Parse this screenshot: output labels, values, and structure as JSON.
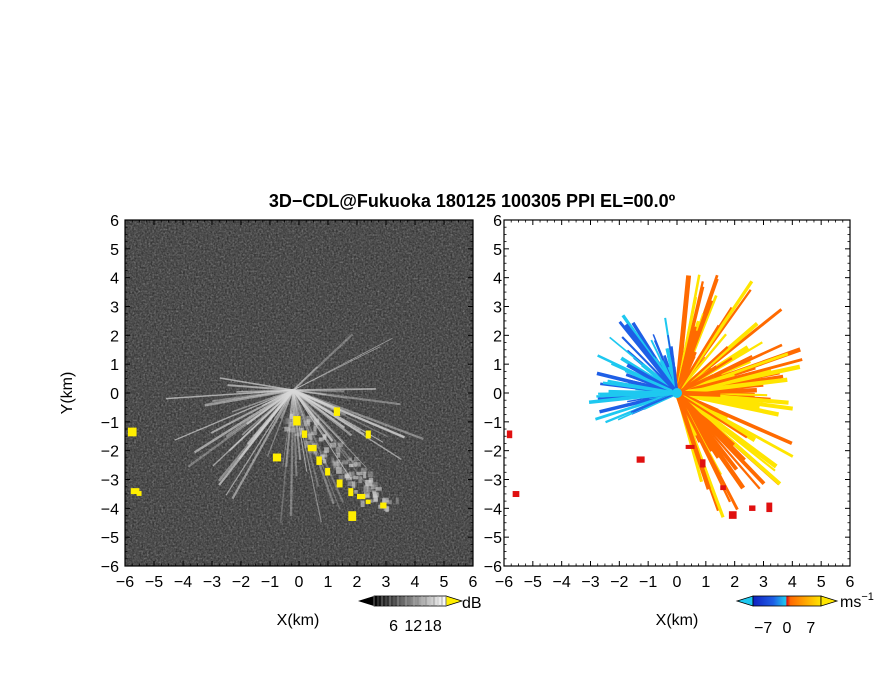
{
  "title": "3D−CDL@Fukuoka 180125 100305 PPI EL=00.0º",
  "chart_data": [
    {
      "type": "heatmap",
      "panel": "left",
      "quantity": "reflectivity / SNR",
      "xlabel": "X(km)",
      "ylabel": "Y(km)",
      "xlim": [
        -6,
        6
      ],
      "ylim": [
        -6,
        6
      ],
      "xticks": [
        "−6",
        "−5",
        "−4",
        "−3",
        "−2",
        "−1",
        "0",
        "1",
        "2",
        "3",
        "4",
        "5",
        "6"
      ],
      "yticks": [
        "6",
        "5",
        "4",
        "3",
        "2",
        "1",
        "0",
        "−1",
        "−2",
        "−3",
        "−4",
        "−5",
        "−6"
      ],
      "colorbar": {
        "unit": "dB",
        "ticks": [
          "6",
          "12",
          "18"
        ],
        "tick_values": [
          6,
          12,
          18
        ],
        "range": [
          0,
          22
        ]
      },
      "background_color": "#2a2a2a",
      "highlight_color": "#ffee00"
    },
    {
      "type": "heatmap",
      "panel": "right",
      "quantity": "Doppler velocity",
      "xlabel": "X(km)",
      "xlim": [
        -6,
        6
      ],
      "ylim": [
        -6,
        6
      ],
      "xticks": [
        "−6",
        "−5",
        "−4",
        "−3",
        "−2",
        "−1",
        "0",
        "1",
        "2",
        "3",
        "4",
        "5",
        "6"
      ],
      "yticks": [
        "6",
        "5",
        "4",
        "3",
        "2",
        "1",
        "0",
        "−1",
        "−2",
        "−3",
        "−4",
        "−5",
        "−6"
      ],
      "colorbar": {
        "unit": "ms",
        "unit_sup": "−1",
        "ticks": [
          "−7",
          "0",
          "7"
        ],
        "tick_values": [
          -7,
          0,
          7
        ],
        "range": [
          -10,
          10
        ]
      },
      "colors": {
        "negative": "#1e5fe6",
        "near_zero_neg": "#1ec8f0",
        "near_zero_pos": "#ff6a00",
        "positive": "#ffe500",
        "edge": "#e01010"
      }
    }
  ]
}
